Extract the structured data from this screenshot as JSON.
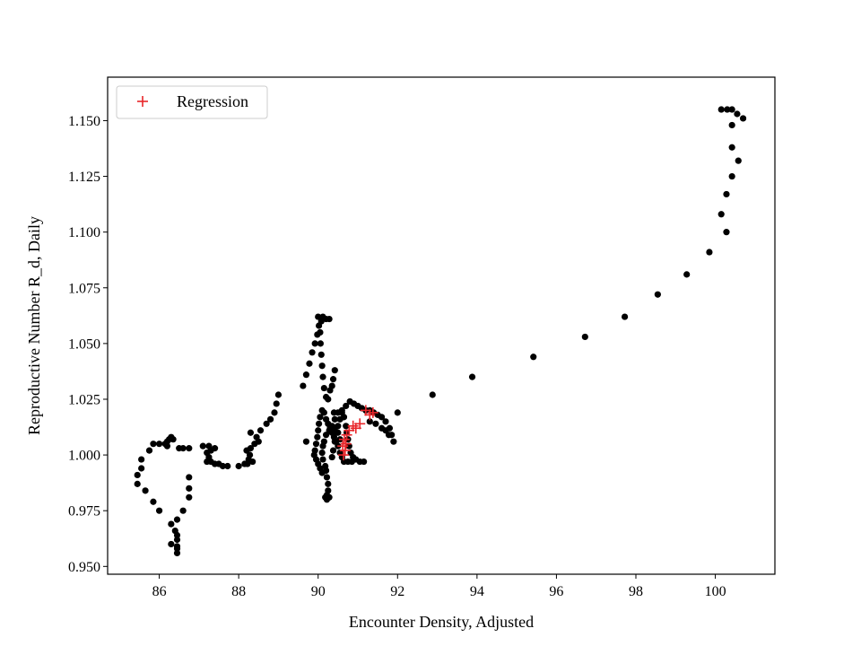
{
  "chart_data": {
    "type": "scatter",
    "title": "",
    "xlabel": "Encounter Density, Adjusted",
    "ylabel": "Reproductive Number R_d, Daily",
    "xlim": [
      84.7,
      101.5
    ],
    "ylim": [
      0.9465,
      1.1695
    ],
    "xticks": [
      86,
      88,
      90,
      92,
      94,
      96,
      98,
      100
    ],
    "xtick_labels": [
      "86",
      "88",
      "90",
      "92",
      "94",
      "96",
      "98",
      "100"
    ],
    "yticks": [
      0.95,
      0.975,
      1.0,
      1.025,
      1.05,
      1.075,
      1.1,
      1.125,
      1.15
    ],
    "ytick_labels": [
      "0.950",
      "0.975",
      "1.000",
      "1.025",
      "1.050",
      "1.075",
      "1.100",
      "1.125",
      "1.150"
    ],
    "grid": false,
    "legend": {
      "position": "top-left",
      "entries": [
        "Regression"
      ]
    },
    "series": [
      {
        "marker": "circle",
        "color": "#000000",
        "points": [
          [
            100.15,
            1.155
          ],
          [
            100.3,
            1.155
          ],
          [
            100.42,
            1.155
          ],
          [
            100.55,
            1.153
          ],
          [
            100.7,
            1.151
          ],
          [
            100.42,
            1.148
          ],
          [
            100.42,
            1.138
          ],
          [
            100.58,
            1.132
          ],
          [
            100.42,
            1.125
          ],
          [
            100.28,
            1.117
          ],
          [
            100.15,
            1.108
          ],
          [
            100.28,
            1.1
          ],
          [
            99.85,
            1.091
          ],
          [
            99.28,
            1.081
          ],
          [
            98.55,
            1.072
          ],
          [
            97.72,
            1.062
          ],
          [
            96.72,
            1.053
          ],
          [
            95.42,
            1.044
          ],
          [
            93.88,
            1.035
          ],
          [
            92.88,
            1.027
          ],
          [
            92.0,
            1.019
          ],
          [
            91.9,
            1.006
          ],
          [
            91.85,
            1.009
          ],
          [
            91.8,
            1.012
          ],
          [
            91.7,
            1.015
          ],
          [
            91.6,
            1.017
          ],
          [
            91.5,
            1.018
          ],
          [
            91.4,
            1.019
          ],
          [
            91.3,
            1.02
          ],
          [
            91.2,
            1.02
          ],
          [
            91.1,
            1.021
          ],
          [
            91.0,
            1.022
          ],
          [
            90.9,
            1.023
          ],
          [
            90.8,
            1.024
          ],
          [
            90.7,
            1.022
          ],
          [
            90.6,
            1.02
          ],
          [
            90.5,
            1.019
          ],
          [
            90.42,
            1.016
          ],
          [
            90.35,
            1.013
          ],
          [
            90.28,
            1.011
          ],
          [
            90.2,
            1.009
          ],
          [
            90.15,
            1.006
          ],
          [
            90.12,
            1.004
          ],
          [
            90.1,
            1.001
          ],
          [
            90.12,
            0.998
          ],
          [
            90.18,
            0.995
          ],
          [
            90.2,
            0.993
          ],
          [
            90.22,
            0.99
          ],
          [
            90.25,
            0.987
          ],
          [
            90.25,
            0.984
          ],
          [
            90.22,
            0.982
          ],
          [
            90.18,
            0.981
          ],
          [
            90.22,
            0.98
          ],
          [
            90.28,
            0.981
          ],
          [
            90.35,
            0.999
          ],
          [
            90.38,
            1.002
          ],
          [
            90.42,
            1.006
          ],
          [
            90.45,
            1.01
          ],
          [
            90.5,
            1.013
          ],
          [
            90.55,
            1.016
          ],
          [
            90.6,
            1.019
          ],
          [
            90.65,
            1.017
          ],
          [
            90.7,
            1.013
          ],
          [
            90.72,
            1.01
          ],
          [
            90.75,
            1.007
          ],
          [
            90.78,
            1.004
          ],
          [
            90.82,
            1.001
          ],
          [
            90.88,
            0.999
          ],
          [
            90.95,
            0.998
          ],
          [
            91.05,
            0.997
          ],
          [
            91.15,
            0.997
          ],
          [
            90.85,
            0.997
          ],
          [
            90.75,
            0.997
          ],
          [
            90.65,
            0.997
          ],
          [
            90.6,
            0.999
          ],
          [
            90.55,
            1.001
          ],
          [
            90.5,
            1.004
          ],
          [
            90.45,
            1.006
          ],
          [
            90.4,
            1.008
          ],
          [
            90.35,
            1.01
          ],
          [
            90.3,
            1.012
          ],
          [
            90.25,
            1.014
          ],
          [
            90.2,
            1.016
          ],
          [
            90.15,
            1.019
          ],
          [
            90.1,
            1.02
          ],
          [
            90.05,
            1.017
          ],
          [
            90.02,
            1.014
          ],
          [
            90.0,
            1.011
          ],
          [
            89.98,
            1.008
          ],
          [
            89.95,
            1.005
          ],
          [
            89.92,
            1.002
          ],
          [
            89.9,
            1.0
          ],
          [
            89.95,
            0.998
          ],
          [
            90.0,
            0.996
          ],
          [
            90.05,
            0.994
          ],
          [
            90.1,
            0.992
          ],
          [
            90.2,
            1.026
          ],
          [
            90.3,
            1.029
          ],
          [
            90.38,
            1.034
          ],
          [
            90.42,
            1.038
          ],
          [
            90.35,
            1.031
          ],
          [
            90.25,
            1.025
          ],
          [
            90.15,
            1.03
          ],
          [
            90.12,
            1.035
          ],
          [
            90.1,
            1.04
          ],
          [
            90.08,
            1.045
          ],
          [
            90.06,
            1.05
          ],
          [
            90.05,
            1.055
          ],
          [
            90.08,
            1.06
          ],
          [
            90.12,
            1.062
          ],
          [
            90.2,
            1.061
          ],
          [
            90.28,
            1.061
          ],
          [
            90.0,
            1.062
          ],
          [
            90.02,
            1.058
          ],
          [
            89.98,
            1.054
          ],
          [
            89.92,
            1.05
          ],
          [
            89.85,
            1.046
          ],
          [
            89.78,
            1.041
          ],
          [
            89.7,
            1.036
          ],
          [
            89.62,
            1.031
          ],
          [
            89.7,
            1.006
          ],
          [
            91.3,
            1.015
          ],
          [
            91.45,
            1.014
          ],
          [
            91.6,
            1.012
          ],
          [
            91.7,
            1.011
          ],
          [
            91.78,
            1.009
          ],
          [
            89.0,
            1.027
          ],
          [
            88.95,
            1.023
          ],
          [
            88.9,
            1.019
          ],
          [
            88.8,
            1.016
          ],
          [
            88.7,
            1.014
          ],
          [
            88.55,
            1.011
          ],
          [
            88.45,
            1.008
          ],
          [
            88.4,
            1.005
          ],
          [
            88.3,
            1.003
          ],
          [
            88.28,
            1.0
          ],
          [
            88.25,
            0.998
          ],
          [
            88.22,
            0.996
          ],
          [
            88.2,
            1.002
          ],
          [
            88.35,
            0.997
          ],
          [
            88.15,
            0.996
          ],
          [
            88.0,
            0.995
          ],
          [
            88.3,
            1.01
          ],
          [
            88.5,
            1.006
          ],
          [
            87.72,
            0.995
          ],
          [
            87.6,
            0.995
          ],
          [
            87.5,
            0.996
          ],
          [
            87.4,
            0.996
          ],
          [
            87.3,
            0.997
          ],
          [
            87.2,
            0.997
          ],
          [
            87.25,
            0.999
          ],
          [
            87.3,
            1.002
          ],
          [
            87.25,
            1.004
          ],
          [
            87.1,
            1.004
          ],
          [
            87.2,
            1.001
          ],
          [
            87.4,
            1.003
          ],
          [
            86.75,
            1.003
          ],
          [
            86.6,
            1.003
          ],
          [
            86.5,
            1.003
          ],
          [
            86.35,
            1.007
          ],
          [
            86.3,
            1.008
          ],
          [
            86.25,
            1.007
          ],
          [
            86.2,
            1.006
          ],
          [
            86.15,
            1.005
          ],
          [
            86.0,
            1.005
          ],
          [
            85.85,
            1.005
          ],
          [
            85.75,
            1.002
          ],
          [
            86.2,
            1.004
          ],
          [
            85.55,
            0.994
          ],
          [
            85.55,
            0.998
          ],
          [
            85.45,
            0.991
          ],
          [
            85.45,
            0.987
          ],
          [
            85.65,
            0.984
          ],
          [
            85.85,
            0.979
          ],
          [
            86.0,
            0.975
          ],
          [
            86.3,
            0.969
          ],
          [
            86.45,
            0.971
          ],
          [
            86.4,
            0.966
          ],
          [
            86.45,
            0.962
          ],
          [
            86.45,
            0.958
          ],
          [
            86.45,
            0.956
          ],
          [
            86.3,
            0.96
          ],
          [
            86.45,
            0.959
          ],
          [
            86.45,
            0.964
          ],
          [
            86.6,
            0.975
          ],
          [
            86.75,
            0.981
          ],
          [
            86.75,
            0.985
          ],
          [
            86.75,
            0.99
          ],
          [
            90.55,
            1.007
          ],
          [
            90.5,
            1.01
          ],
          [
            90.4,
            1.019
          ],
          [
            90.42,
            1.012
          ]
        ]
      },
      {
        "name": "Regression",
        "marker": "plus",
        "color": "#e8262a",
        "points": [
          [
            91.2,
            1.02
          ],
          [
            91.38,
            1.019
          ],
          [
            91.3,
            1.018
          ],
          [
            91.05,
            1.014
          ],
          [
            90.95,
            1.012
          ],
          [
            90.88,
            1.013
          ],
          [
            90.78,
            1.011
          ],
          [
            90.72,
            1.009
          ],
          [
            90.66,
            1.007
          ],
          [
            90.7,
            1.005
          ],
          [
            90.62,
            1.004
          ],
          [
            90.68,
            1.002
          ],
          [
            90.64,
            1.0
          ]
        ]
      }
    ]
  }
}
